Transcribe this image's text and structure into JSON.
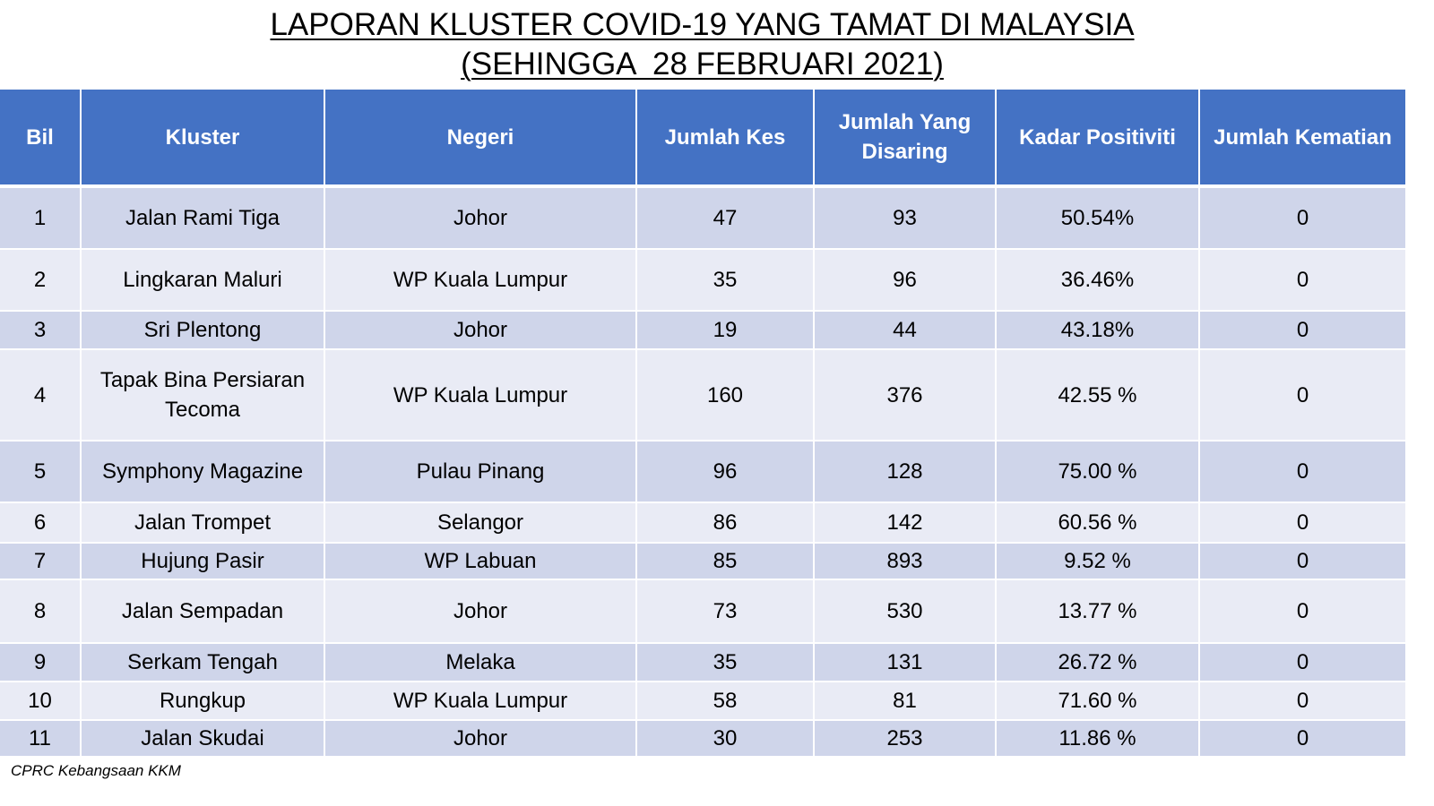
{
  "title": {
    "line1": "LAPORAN KLUSTER COVID-19 YANG TAMAT DI MALAYSIA",
    "line2": "(SEHINGGA  28 FEBRUARI 2021)"
  },
  "table": {
    "headers": {
      "bil": "Bil",
      "kluster": "Kluster",
      "negeri": "Negeri",
      "jumlah_kes": "Jumlah Kes",
      "jumlah_disaring": "Jumlah Yang Disaring",
      "kadar_positiviti": "Kadar Positiviti",
      "jumlah_kematian": "Jumlah Kematian"
    },
    "rows": [
      {
        "bil": "1",
        "kluster": "Jalan Rami Tiga",
        "negeri": "Johor",
        "kes": "47",
        "disaring": "93",
        "positiviti": "50.54%",
        "kematian": "0"
      },
      {
        "bil": "2",
        "kluster": "Lingkaran Maluri",
        "negeri": "WP Kuala Lumpur",
        "kes": "35",
        "disaring": "96",
        "positiviti": "36.46%",
        "kematian": "0"
      },
      {
        "bil": "3",
        "kluster": "Sri Plentong",
        "negeri": "Johor",
        "kes": "19",
        "disaring": "44",
        "positiviti": "43.18%",
        "kematian": "0"
      },
      {
        "bil": "4",
        "kluster": "Tapak Bina Persiaran Tecoma",
        "negeri": "WP Kuala Lumpur",
        "kes": "160",
        "disaring": "376",
        "positiviti": "42.55 %",
        "kematian": "0"
      },
      {
        "bil": "5",
        "kluster": "Symphony Magazine",
        "negeri": "Pulau Pinang",
        "kes": "96",
        "disaring": "128",
        "positiviti": "75.00 %",
        "kematian": "0"
      },
      {
        "bil": "6",
        "kluster": "Jalan Trompet",
        "negeri": "Selangor",
        "kes": "86",
        "disaring": "142",
        "positiviti": "60.56 %",
        "kematian": "0"
      },
      {
        "bil": "7",
        "kluster": "Hujung Pasir",
        "negeri": "WP Labuan",
        "kes": "85",
        "disaring": "893",
        "positiviti": "9.52 %",
        "kematian": "0"
      },
      {
        "bil": "8",
        "kluster": "Jalan Sempadan",
        "negeri": "Johor",
        "kes": "73",
        "disaring": "530",
        "positiviti": "13.77 %",
        "kematian": "0"
      },
      {
        "bil": "9",
        "kluster": "Serkam Tengah",
        "negeri": "Melaka",
        "kes": "35",
        "disaring": "131",
        "positiviti": "26.72 %",
        "kematian": "0"
      },
      {
        "bil": "10",
        "kluster": "Rungkup",
        "negeri": "WP Kuala Lumpur",
        "kes": "58",
        "disaring": "81",
        "positiviti": "71.60 %",
        "kematian": "0"
      },
      {
        "bil": "11",
        "kluster": "Jalan Skudai",
        "negeri": "Johor",
        "kes": "30",
        "disaring": "253",
        "positiviti": "11.86 %",
        "kematian": "0"
      }
    ]
  },
  "source": "CPRC Kebangsaan KKM",
  "colors": {
    "header_bg": "#4472c4",
    "row_odd": "#cfd5ea",
    "row_even": "#e9ebf5"
  }
}
